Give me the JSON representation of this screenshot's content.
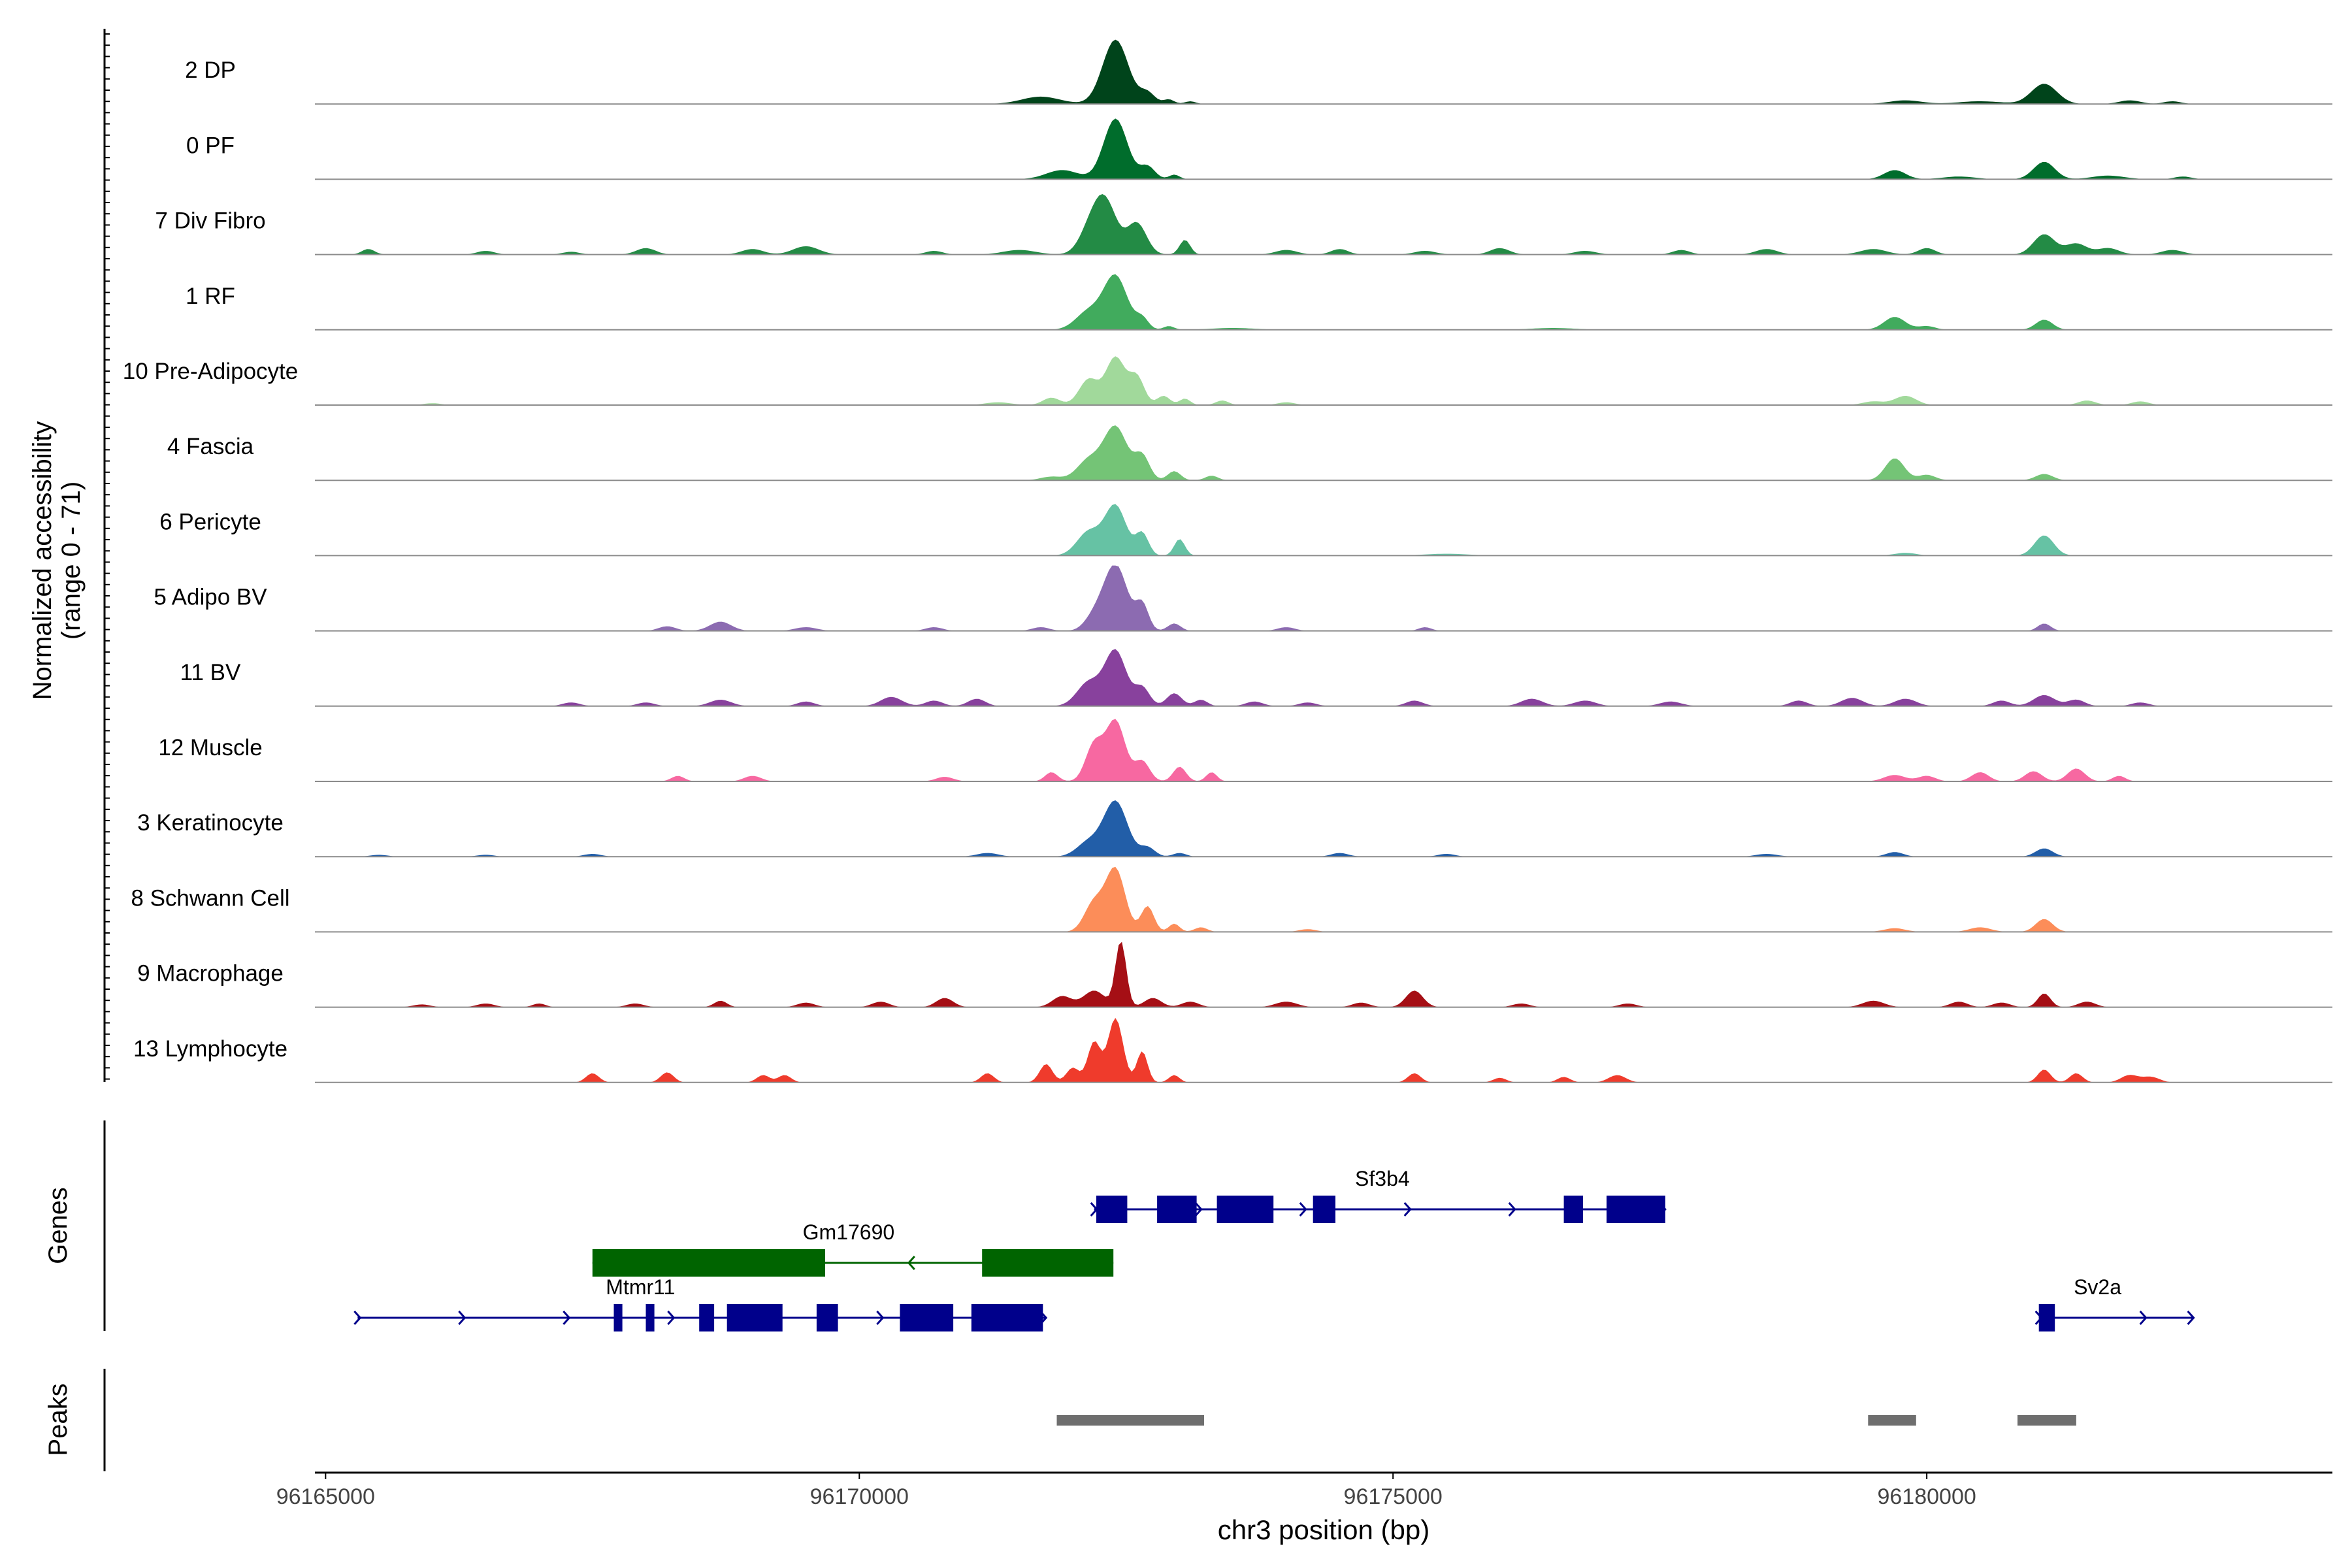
{
  "chart_data": {
    "type": "area",
    "chromosome": "chr3",
    "xlabel": "chr3 position (bp)",
    "ylabel_line1": "Normalized accessibility",
    "ylabel_line2": "(range 0 - 71)",
    "y_range": [
      0,
      71
    ],
    "xlim": [
      96164900,
      96183800
    ],
    "x_ticks": [
      {
        "value": 96165000,
        "label": "96165000"
      },
      {
        "value": 96170000,
        "label": "96170000"
      },
      {
        "value": 96175000,
        "label": "96175000"
      },
      {
        "value": 96180000,
        "label": "96180000"
      }
    ],
    "panel_labels": {
      "genes": "Genes",
      "peaks": "Peaks"
    },
    "tracks": [
      {
        "name": "2 DP",
        "color": "#00441b",
        "peaks": [
          [
            96172400,
            70,
            120
          ],
          [
            96171700,
            8,
            180
          ],
          [
            96172700,
            12,
            70
          ],
          [
            96172900,
            5,
            50
          ],
          [
            96173100,
            3,
            50
          ],
          [
            96179800,
            4,
            150
          ],
          [
            96180500,
            3,
            200
          ],
          [
            96181100,
            22,
            120
          ],
          [
            96181900,
            4,
            100
          ],
          [
            96182300,
            3,
            80
          ]
        ]
      },
      {
        "name": "0 PF",
        "color": "#006d2c",
        "peaks": [
          [
            96172400,
            66,
            110
          ],
          [
            96171900,
            10,
            150
          ],
          [
            96172700,
            14,
            70
          ],
          [
            96172950,
            5,
            50
          ],
          [
            96179700,
            10,
            100
          ],
          [
            96180300,
            3,
            150
          ],
          [
            96181100,
            19,
            100
          ],
          [
            96181700,
            4,
            150
          ],
          [
            96182400,
            3,
            80
          ]
        ]
      },
      {
        "name": "7 Div Fibro",
        "color": "#238b45",
        "peaks": [
          [
            96172300,
            58,
            110
          ],
          [
            96172600,
            34,
            90
          ],
          [
            96172150,
            20,
            100
          ],
          [
            96173050,
            16,
            50
          ],
          [
            96165400,
            6,
            60
          ],
          [
            96166500,
            4,
            80
          ],
          [
            96167300,
            3,
            80
          ],
          [
            96168000,
            7,
            90
          ],
          [
            96169000,
            6,
            100
          ],
          [
            96169500,
            9,
            120
          ],
          [
            96170700,
            4,
            80
          ],
          [
            96171500,
            5,
            150
          ],
          [
            96174000,
            5,
            100
          ],
          [
            96174500,
            6,
            80
          ],
          [
            96175300,
            4,
            100
          ],
          [
            96176000,
            7,
            90
          ],
          [
            96176800,
            4,
            100
          ],
          [
            96177700,
            5,
            80
          ],
          [
            96178500,
            6,
            100
          ],
          [
            96179500,
            6,
            120
          ],
          [
            96180000,
            7,
            80
          ],
          [
            96181100,
            22,
            100
          ],
          [
            96181400,
            12,
            100
          ],
          [
            96181700,
            7,
            100
          ],
          [
            96182300,
            5,
            100
          ]
        ]
      },
      {
        "name": "1 RF",
        "color": "#41ab5d",
        "peaks": [
          [
            96172400,
            58,
            110
          ],
          [
            96172150,
            20,
            120
          ],
          [
            96172650,
            12,
            60
          ],
          [
            96172900,
            4,
            50
          ],
          [
            96179700,
            14,
            100
          ],
          [
            96180000,
            4,
            80
          ],
          [
            96181100,
            11,
            80
          ],
          [
            96173500,
            2,
            200
          ],
          [
            96176500,
            2,
            200
          ]
        ]
      },
      {
        "name": "10 Pre-Adipocyte",
        "color": "#a1d99b",
        "peaks": [
          [
            96172400,
            52,
            90
          ],
          [
            96172150,
            28,
            90
          ],
          [
            96172600,
            30,
            70
          ],
          [
            96171800,
            8,
            80
          ],
          [
            96172850,
            10,
            60
          ],
          [
            96173050,
            7,
            50
          ],
          [
            96173400,
            5,
            60
          ],
          [
            96171300,
            3,
            120
          ],
          [
            96174000,
            3,
            80
          ],
          [
            96179800,
            10,
            100
          ],
          [
            96179500,
            4,
            100
          ],
          [
            96181500,
            5,
            80
          ],
          [
            96182000,
            4,
            80
          ],
          [
            96166000,
            2,
            80
          ]
        ]
      },
      {
        "name": "4 Fascia",
        "color": "#74c476",
        "peaks": [
          [
            96172400,
            58,
            110
          ],
          [
            96172150,
            22,
            110
          ],
          [
            96172650,
            26,
            70
          ],
          [
            96172950,
            10,
            60
          ],
          [
            96173300,
            5,
            60
          ],
          [
            96179700,
            24,
            90
          ],
          [
            96180000,
            6,
            80
          ],
          [
            96181100,
            7,
            80
          ],
          [
            96171800,
            4,
            100
          ]
        ]
      },
      {
        "name": "6 Pericyte",
        "color": "#66c2a4",
        "peaks": [
          [
            96172400,
            54,
            100
          ],
          [
            96172150,
            26,
            110
          ],
          [
            96172650,
            24,
            60
          ],
          [
            96173000,
            18,
            50
          ],
          [
            96181100,
            22,
            90
          ],
          [
            96179800,
            3,
            100
          ],
          [
            96175500,
            2,
            200
          ]
        ]
      },
      {
        "name": "5 Adipo BV",
        "color": "#8c6bb1",
        "peaks": [
          [
            96172400,
            72,
            110
          ],
          [
            96172650,
            28,
            60
          ],
          [
            96172200,
            14,
            90
          ],
          [
            96172950,
            8,
            60
          ],
          [
            96168700,
            10,
            100
          ],
          [
            96168200,
            5,
            80
          ],
          [
            96169500,
            4,
            100
          ],
          [
            96170700,
            4,
            80
          ],
          [
            96174000,
            4,
            80
          ],
          [
            96175300,
            4,
            60
          ],
          [
            96181100,
            8,
            60
          ],
          [
            96171700,
            4,
            80
          ]
        ]
      },
      {
        "name": "11 BV",
        "color": "#88419d",
        "peaks": [
          [
            96172400,
            60,
            100
          ],
          [
            96172150,
            26,
            110
          ],
          [
            96172650,
            20,
            70
          ],
          [
            96172950,
            14,
            70
          ],
          [
            96173200,
            7,
            60
          ],
          [
            96171100,
            8,
            80
          ],
          [
            96170300,
            10,
            100
          ],
          [
            96170700,
            6,
            80
          ],
          [
            96169500,
            5,
            80
          ],
          [
            96168700,
            7,
            100
          ],
          [
            96168000,
            4,
            80
          ],
          [
            96167300,
            4,
            80
          ],
          [
            96173700,
            5,
            80
          ],
          [
            96174200,
            4,
            80
          ],
          [
            96175200,
            6,
            80
          ],
          [
            96176300,
            8,
            100
          ],
          [
            96176800,
            6,
            100
          ],
          [
            96177600,
            5,
            100
          ],
          [
            96178800,
            6,
            80
          ],
          [
            96179300,
            9,
            100
          ],
          [
            96179800,
            8,
            100
          ],
          [
            96180700,
            6,
            80
          ],
          [
            96181100,
            12,
            100
          ],
          [
            96181400,
            7,
            80
          ],
          [
            96182000,
            4,
            80
          ]
        ]
      },
      {
        "name": "12 Muscle",
        "color": "#f768a1",
        "peaks": [
          [
            96172400,
            66,
            90
          ],
          [
            96172200,
            40,
            80
          ],
          [
            96172650,
            22,
            70
          ],
          [
            96173000,
            16,
            60
          ],
          [
            96173300,
            10,
            50
          ],
          [
            96171800,
            10,
            60
          ],
          [
            96168300,
            6,
            60
          ],
          [
            96169000,
            6,
            80
          ],
          [
            96170800,
            5,
            80
          ],
          [
            96179700,
            7,
            100
          ],
          [
            96180000,
            6,
            80
          ],
          [
            96180500,
            10,
            80
          ],
          [
            96181000,
            11,
            80
          ],
          [
            96181400,
            14,
            80
          ],
          [
            96181800,
            6,
            60
          ]
        ]
      },
      {
        "name": "3 Keratinocyte",
        "color": "#225ea8",
        "peaks": [
          [
            96172400,
            60,
            110
          ],
          [
            96172150,
            16,
            110
          ],
          [
            96172700,
            10,
            70
          ],
          [
            96171200,
            4,
            100
          ],
          [
            96173000,
            4,
            60
          ],
          [
            96174500,
            4,
            80
          ],
          [
            96175500,
            3,
            80
          ],
          [
            96178500,
            3,
            100
          ],
          [
            96179700,
            5,
            80
          ],
          [
            96181100,
            9,
            80
          ],
          [
            96165500,
            2,
            80
          ],
          [
            96166500,
            2,
            80
          ],
          [
            96167500,
            3,
            80
          ]
        ]
      },
      {
        "name": "8 Schwann Cell",
        "color": "#fc8d59",
        "peaks": [
          [
            96172400,
            68,
            90
          ],
          [
            96172200,
            32,
            90
          ],
          [
            96172700,
            28,
            60
          ],
          [
            96172950,
            9,
            50
          ],
          [
            96173200,
            5,
            60
          ],
          [
            96181100,
            14,
            80
          ],
          [
            96180500,
            5,
            100
          ],
          [
            96179700,
            4,
            100
          ],
          [
            96174200,
            3,
            80
          ]
        ]
      },
      {
        "name": "9 Macrophage",
        "color": "#a50f15",
        "peaks": [
          [
            96172450,
            72,
            50
          ],
          [
            96172200,
            18,
            100
          ],
          [
            96171900,
            12,
            90
          ],
          [
            96172750,
            10,
            80
          ],
          [
            96173100,
            6,
            80
          ],
          [
            96170800,
            10,
            80
          ],
          [
            96170200,
            6,
            80
          ],
          [
            96169500,
            5,
            80
          ],
          [
            96168700,
            7,
            60
          ],
          [
            96167900,
            4,
            80
          ],
          [
            96167000,
            4,
            60
          ],
          [
            96166500,
            4,
            80
          ],
          [
            96165900,
            3,
            80
          ],
          [
            96175200,
            18,
            80
          ],
          [
            96174700,
            5,
            80
          ],
          [
            96174000,
            6,
            100
          ],
          [
            96176200,
            4,
            80
          ],
          [
            96177200,
            4,
            80
          ],
          [
            96179500,
            7,
            100
          ],
          [
            96180300,
            6,
            80
          ],
          [
            96180700,
            5,
            80
          ],
          [
            96181100,
            15,
            60
          ],
          [
            96181500,
            6,
            80
          ]
        ]
      },
      {
        "name": "13 Lymphocyte",
        "color": "#ef3b2c",
        "peaks": [
          [
            96172400,
            70,
            70
          ],
          [
            96172200,
            44,
            60
          ],
          [
            96172650,
            34,
            50
          ],
          [
            96172000,
            16,
            60
          ],
          [
            96171750,
            20,
            60
          ],
          [
            96171200,
            10,
            60
          ],
          [
            96172950,
            8,
            50
          ],
          [
            96167500,
            10,
            60
          ],
          [
            96168200,
            11,
            60
          ],
          [
            96169100,
            8,
            60
          ],
          [
            96169300,
            8,
            60
          ],
          [
            96175200,
            10,
            60
          ],
          [
            96176000,
            5,
            60
          ],
          [
            96176600,
            6,
            60
          ],
          [
            96177100,
            8,
            80
          ],
          [
            96181100,
            14,
            60
          ],
          [
            96181400,
            10,
            60
          ],
          [
            96181900,
            8,
            80
          ],
          [
            96182100,
            6,
            80
          ]
        ]
      }
    ],
    "genes": [
      {
        "name": "Sf3b4",
        "row": 0,
        "color": "#00008b",
        "start": 96172200,
        "end": 96177550,
        "strand": "+",
        "exons": [
          [
            96172220,
            96172510
          ],
          [
            96172790,
            96173160
          ],
          [
            96173350,
            96173880
          ],
          [
            96174250,
            96174460
          ],
          [
            96176600,
            96176780
          ],
          [
            96177000,
            96177550
          ]
        ],
        "label_pos": 96174900
      },
      {
        "name": "Gm17690",
        "row": 1,
        "color": "#006400",
        "start": 96167500,
        "end": 96172380,
        "strand": "-",
        "exons": [
          [
            96167500,
            96169680
          ],
          [
            96171150,
            96172380
          ]
        ],
        "label_pos": 96169900
      },
      {
        "name": "Mtmr11",
        "row": 2,
        "color": "#00008b",
        "start": 96165300,
        "end": 96171750,
        "strand": "+",
        "exons": [
          [
            96167700,
            96167780
          ],
          [
            96168000,
            96168080
          ],
          [
            96168500,
            96168640
          ],
          [
            96168760,
            96169280
          ],
          [
            96169600,
            96169800
          ],
          [
            96170380,
            96170880
          ],
          [
            96171050,
            96171720
          ]
        ],
        "label_pos": 96167950
      },
      {
        "name": "Sv2a",
        "row": 2,
        "color": "#00008b",
        "start": 96181050,
        "end": 96182500,
        "strand": "+",
        "exons": [
          [
            96181050,
            96181200
          ]
        ],
        "label_pos": 96181600
      }
    ],
    "peak_regions": [
      [
        96171850,
        96173230
      ],
      [
        96179450,
        96179900
      ],
      [
        96180850,
        96181400
      ]
    ]
  }
}
